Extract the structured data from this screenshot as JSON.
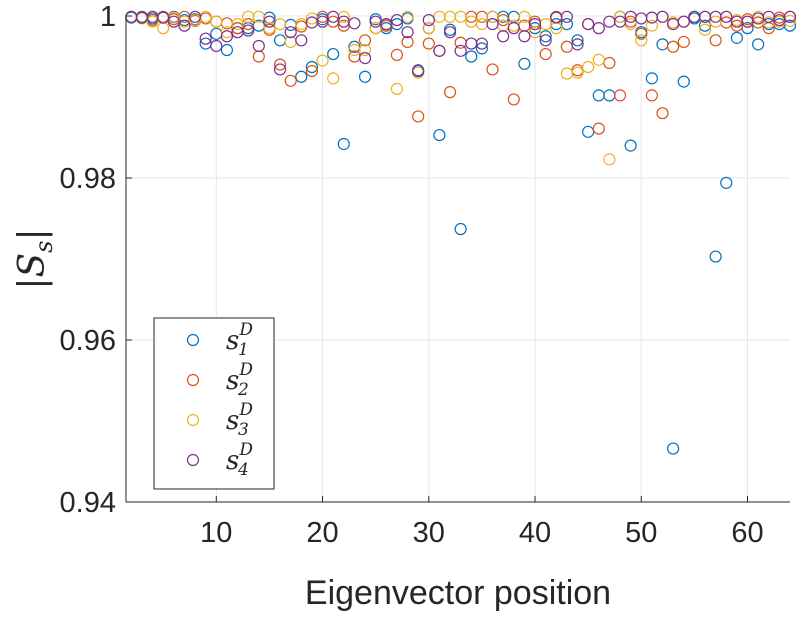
{
  "chart_data": {
    "type": "scatter",
    "title": "",
    "xlabel": "Eigenvector position",
    "ylabel": {
      "bar_left": "|",
      "symbol": "S",
      "subscript": "s",
      "bar_right": "|"
    },
    "xlim": [
      1.5,
      64
    ],
    "ylim": [
      0.94,
      1.0
    ],
    "xticks": [
      10,
      20,
      30,
      40,
      50,
      60
    ],
    "yticks": [
      0.94,
      0.96,
      0.98,
      1.0
    ],
    "xtick_labels": [
      "10",
      "20",
      "30",
      "40",
      "50",
      "60"
    ],
    "ytick_labels": [
      "0.94",
      "0.96",
      "0.98",
      "1"
    ],
    "grid": true,
    "legend_position": "lower-left",
    "marker": "open-circle",
    "series": [
      {
        "name": "s_1^D",
        "label": {
          "base": "s",
          "sub": "1",
          "sup": "D"
        },
        "color": "#0072BD",
        "x": [
          2,
          3,
          4,
          5,
          6,
          7,
          8,
          9,
          10,
          11,
          12,
          13,
          14,
          15,
          16,
          17,
          18,
          19,
          20,
          21,
          22,
          23,
          24,
          25,
          26,
          27,
          28,
          29,
          30,
          31,
          32,
          33,
          34,
          35,
          36,
          37,
          38,
          39,
          40,
          41,
          42,
          43,
          44,
          45,
          46,
          47,
          48,
          49,
          50,
          51,
          52,
          53,
          54,
          55,
          56,
          57,
          58,
          59,
          60,
          61,
          62,
          63,
          64
        ],
        "y": [
          0.9998,
          0.9999,
          0.9997,
          0.9998,
          0.9999,
          0.9995,
          0.9996,
          0.9966,
          0.9978,
          0.9958,
          0.9985,
          0.9985,
          0.9988,
          0.9998,
          0.997,
          0.9989,
          0.9925,
          0.9937,
          0.9996,
          0.9953,
          0.9842,
          0.9962,
          0.9925,
          0.9996,
          0.9985,
          0.999,
          0.9997,
          0.9933,
          0.9985,
          0.9853,
          0.9983,
          0.9737,
          0.995,
          0.996,
          0.9999,
          0.9999,
          0.9999,
          0.9941,
          0.9985,
          0.9975,
          0.999,
          0.999,
          0.997,
          0.9857,
          0.9902,
          0.9902,
          0.9999,
          0.984,
          0.998,
          0.9923,
          0.9965,
          0.9466,
          0.9919,
          0.9997,
          0.9988,
          0.9703,
          0.9794,
          0.9973,
          0.9985,
          0.9965,
          0.999,
          0.999,
          0.9988
        ]
      },
      {
        "name": "s_2^D",
        "label": {
          "base": "s",
          "sub": "2",
          "sup": "D"
        },
        "color": "#D95319",
        "x": [
          2,
          3,
          4,
          5,
          6,
          7,
          8,
          9,
          10,
          11,
          12,
          13,
          14,
          15,
          16,
          17,
          18,
          19,
          20,
          21,
          22,
          23,
          24,
          25,
          26,
          27,
          28,
          29,
          30,
          31,
          32,
          33,
          34,
          35,
          36,
          37,
          38,
          39,
          40,
          41,
          42,
          43,
          44,
          45,
          46,
          47,
          48,
          49,
          50,
          51,
          52,
          53,
          54,
          55,
          56,
          57,
          58,
          59,
          60,
          61,
          62,
          63,
          64
        ],
        "y": [
          0.9999,
          0.9998,
          0.9995,
          0.9999,
          0.9996,
          0.9999,
          0.9994,
          0.9997,
          0.9993,
          0.9991,
          0.9985,
          0.999,
          0.995,
          0.9983,
          0.994,
          0.992,
          0.9987,
          0.9932,
          0.9999,
          0.9993,
          0.9988,
          0.995,
          0.997,
          0.9985,
          0.9988,
          0.9952,
          0.9968,
          0.9876,
          0.9966,
          0.9957,
          0.9906,
          0.9967,
          0.9999,
          0.9999,
          0.9934,
          0.9995,
          0.9897,
          0.9988,
          0.9993,
          0.9953,
          0.9999,
          0.9962,
          0.9933,
          0.999,
          0.9861,
          0.9942,
          0.9902,
          0.9993,
          0.9978,
          0.9902,
          0.988,
          0.9962,
          0.9968,
          0.9999,
          0.9999,
          0.997,
          0.9992,
          0.9988,
          0.9996,
          0.9992,
          0.9985,
          0.9998,
          0.9999
        ]
      },
      {
        "name": "s_3^D",
        "label": {
          "base": "s",
          "sub": "3",
          "sup": "D"
        },
        "color": "#EDB120",
        "x": [
          2,
          3,
          4,
          5,
          6,
          7,
          8,
          9,
          10,
          11,
          12,
          13,
          14,
          15,
          16,
          17,
          18,
          19,
          20,
          21,
          22,
          23,
          24,
          25,
          26,
          27,
          28,
          29,
          30,
          31,
          32,
          33,
          34,
          35,
          36,
          37,
          38,
          39,
          40,
          41,
          42,
          43,
          44,
          45,
          46,
          47,
          48,
          49,
          50,
          51,
          52,
          53,
          54,
          55,
          56,
          57,
          58,
          59,
          60,
          61,
          62,
          63,
          64
        ],
        "y": [
          0.9999,
          0.9997,
          0.9993,
          0.9985,
          0.9998,
          0.9993,
          0.9995,
          0.9999,
          0.9993,
          0.998,
          0.999,
          0.9999,
          0.9999,
          0.9985,
          0.999,
          0.9968,
          0.999,
          0.9997,
          0.9945,
          0.9923,
          0.9999,
          0.9958,
          0.9958,
          0.9985,
          0.999,
          0.991,
          0.9999,
          0.993,
          0.9985,
          0.9999,
          0.9999,
          0.9999,
          0.9993,
          0.999,
          0.9999,
          0.9988,
          0.9988,
          0.9999,
          0.998,
          0.999,
          0.9985,
          0.9929,
          0.993,
          0.9937,
          0.9946,
          0.9823,
          0.9999,
          0.999,
          0.997,
          0.9988,
          0.9999,
          0.9992,
          0.9993,
          0.9999,
          0.9983,
          0.9993,
          0.9999,
          0.9995,
          0.9993,
          0.9999,
          0.9992,
          0.9993,
          0.9994
        ]
      },
      {
        "name": "s_4^D",
        "label": {
          "base": "s",
          "sub": "4",
          "sup": "D"
        },
        "color": "#7E2F8E",
        "x": [
          2,
          3,
          4,
          5,
          6,
          7,
          8,
          9,
          10,
          11,
          12,
          13,
          14,
          15,
          16,
          17,
          18,
          19,
          20,
          21,
          22,
          23,
          24,
          25,
          26,
          27,
          28,
          29,
          30,
          31,
          32,
          33,
          34,
          35,
          36,
          37,
          38,
          39,
          40,
          41,
          42,
          43,
          44,
          45,
          46,
          47,
          48,
          49,
          50,
          51,
          52,
          53,
          54,
          55,
          56,
          57,
          58,
          59,
          60,
          61,
          62,
          63,
          64
        ],
        "y": [
          0.9999,
          0.9998,
          0.9999,
          0.9998,
          0.9993,
          0.9988,
          0.9999,
          0.9972,
          0.9963,
          0.9975,
          0.998,
          0.9982,
          0.9963,
          0.9993,
          0.9934,
          0.998,
          0.997,
          0.9992,
          0.9993,
          0.9999,
          0.9993,
          0.9991,
          0.9948,
          0.9993,
          0.999,
          0.9995,
          0.998,
          0.9932,
          0.9995,
          0.9957,
          0.998,
          0.9957,
          0.9966,
          0.9966,
          0.999,
          0.9975,
          0.9985,
          0.9975,
          0.999,
          0.997,
          0.9998,
          0.9999,
          0.9965,
          0.999,
          0.9985,
          0.9993,
          0.9993,
          0.9999,
          0.9997,
          0.9998,
          0.9999,
          0.999,
          0.9993,
          0.9999,
          0.9999,
          0.9999,
          0.9999,
          0.9993,
          0.9993,
          0.9997,
          0.9999,
          0.9995,
          0.9999
        ]
      }
    ]
  }
}
